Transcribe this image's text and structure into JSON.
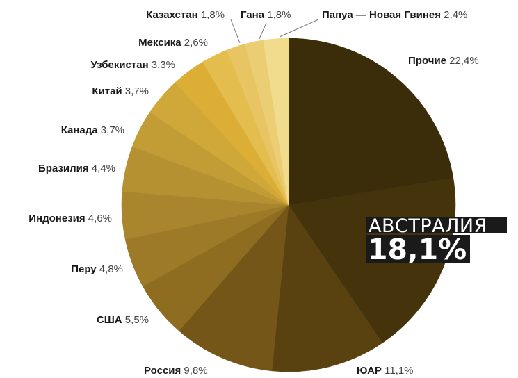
{
  "chart_data": {
    "type": "pie",
    "title": "",
    "slices": [
      {
        "label": "Прочие",
        "value": 22.4,
        "value_text": "22,4%",
        "color": "#3b2c0a"
      },
      {
        "label": "Австралия",
        "value": 18.1,
        "value_text": "18,1%",
        "color": "#45330b"
      },
      {
        "label": "ЮАР",
        "value": 11.1,
        "value_text": "11,1%",
        "color": "#5a4210"
      },
      {
        "label": "Россия",
        "value": 9.8,
        "value_text": "9,8%",
        "color": "#745718"
      },
      {
        "label": "США",
        "value": 5.5,
        "value_text": "5,5%",
        "color": "#8e6d21"
      },
      {
        "label": "Перу",
        "value": 4.8,
        "value_text": "4,8%",
        "color": "#9c7a27"
      },
      {
        "label": "Индонезия",
        "value": 4.6,
        "value_text": "4,6%",
        "color": "#a9862d"
      },
      {
        "label": "Бразилия",
        "value": 4.4,
        "value_text": "4,4%",
        "color": "#b59131"
      },
      {
        "label": "Канада",
        "value": 3.7,
        "value_text": "3,7%",
        "color": "#c29c35"
      },
      {
        "label": "Китай",
        "value": 3.7,
        "value_text": "3,7%",
        "color": "#d0a739"
      },
      {
        "label": "Узбекистан",
        "value": 3.3,
        "value_text": "3,3%",
        "color": "#dcae36"
      },
      {
        "label": "Мексика",
        "value": 2.6,
        "value_text": "2,6%",
        "color": "#e3bd4e"
      },
      {
        "label": "Казахстан",
        "value": 1.8,
        "value_text": "1,8%",
        "color": "#e8c562"
      },
      {
        "label": "Гана",
        "value": 1.8,
        "value_text": "1,8%",
        "color": "#ebcd74"
      },
      {
        "label": "Папуа — Новая Гвинея",
        "value": 2.4,
        "value_text": "2,4%",
        "color": "#f1dc8e"
      }
    ],
    "highlight": {
      "label": "АВСТРАЛИЯ",
      "value_text": "18,1%",
      "box_color": "#1a1a1a"
    }
  }
}
